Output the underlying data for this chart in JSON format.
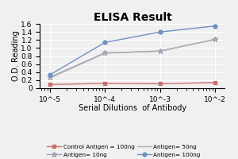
{
  "title": "ELISA Result",
  "xlabel": "Serial Dilutions  of Antibody",
  "ylabel": "O.D. Reading",
  "x_values": [
    0.01,
    0.001,
    0.0001,
    1e-05
  ],
  "x_tick_labels": [
    "10^-2",
    "10^-3",
    "10^-4",
    "10^-5"
  ],
  "ylim": [
    0,
    1.6
  ],
  "yticks": [
    0,
    0.2,
    0.4,
    0.6,
    0.8,
    1.0,
    1.2,
    1.4,
    1.6
  ],
  "series": [
    {
      "label": "Control Antigen = 100ng",
      "color": "#c87070",
      "marker": "s",
      "markersize": 3.5,
      "linewidth": 1.0,
      "values": [
        0.14,
        0.11,
        0.12,
        0.09
      ]
    },
    {
      "label": "Antigen= 10ng",
      "color": "#a0a0b8",
      "marker": "*",
      "markersize": 5,
      "linewidth": 1.0,
      "values": [
        1.22,
        0.92,
        0.88,
        0.27
      ]
    },
    {
      "label": "Antigen= 50ng",
      "color": "#b0b0b0",
      "marker": "none",
      "markersize": 3.5,
      "linewidth": 1.0,
      "values": [
        1.21,
        0.93,
        0.87,
        0.25
      ]
    },
    {
      "label": "Antigen= 100ng",
      "color": "#7090c0",
      "marker": "o",
      "markersize": 3.5,
      "linewidth": 1.0,
      "values": [
        1.55,
        1.4,
        1.14,
        0.33
      ]
    }
  ],
  "background_color": "#f0f0f0",
  "grid_color": "#ffffff",
  "title_fontsize": 10,
  "axis_fontsize": 7,
  "tick_fontsize": 6.5,
  "legend_fontsize": 5.2
}
